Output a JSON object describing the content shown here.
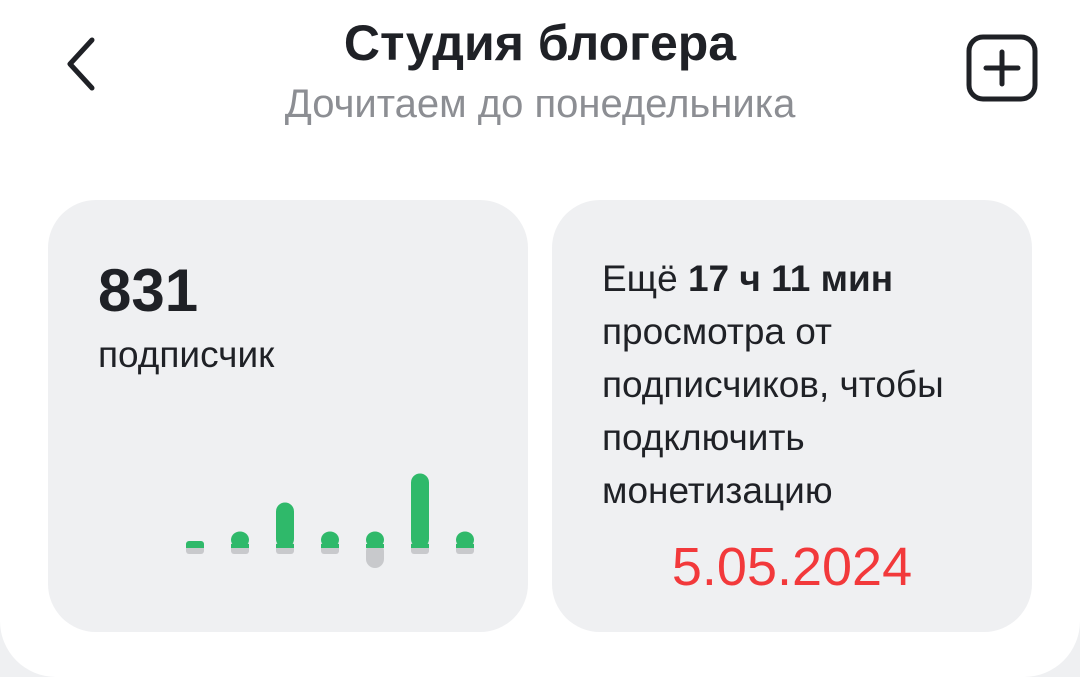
{
  "header": {
    "title": "Студия блогера",
    "subtitle": "Дочитаем до понедельника",
    "back_icon": "chevron-left-icon",
    "add_icon": "plus-square-icon"
  },
  "subscribers": {
    "count": "831",
    "label": "подписчик"
  },
  "chart_data": {
    "type": "bar",
    "values": [
      0.3,
      1,
      3,
      1,
      1,
      5,
      1
    ],
    "negative": [
      0,
      0,
      0,
      0,
      -1,
      0,
      0
    ],
    "colors": {
      "positive": "#2fb96a",
      "negative": "#c8c9cc"
    }
  },
  "monetization": {
    "prefix": "Ещё ",
    "amount": "17 ч 11 мин",
    "rest": " просмотра от подписчиков, чтобы подключить монетизацию",
    "date": "5.05.2024",
    "date_color": "#f2393b"
  }
}
